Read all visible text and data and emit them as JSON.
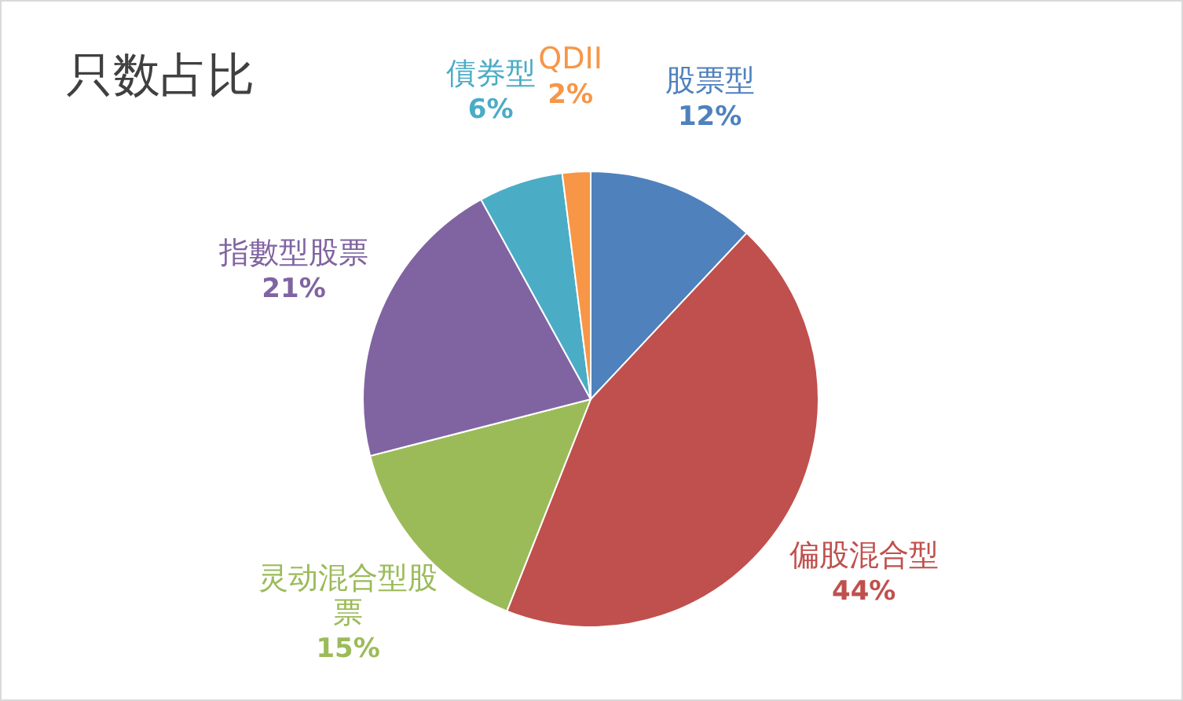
{
  "chart_data": {
    "type": "pie",
    "title": "只数占比",
    "categories": [
      "股票型",
      "偏股混合型",
      "灵动混合型股票",
      "指數型股票",
      "債券型",
      "QDII"
    ],
    "values": [
      12,
      44,
      15,
      21,
      6,
      2
    ],
    "colors": [
      "#4f81bd",
      "#c0504d",
      "#9bbb59",
      "#8064a2",
      "#4bacc6",
      "#f79646"
    ],
    "value_labels": [
      "12%",
      "44%",
      "15%",
      "21%",
      "6%",
      "2%"
    ],
    "legend": false
  }
}
